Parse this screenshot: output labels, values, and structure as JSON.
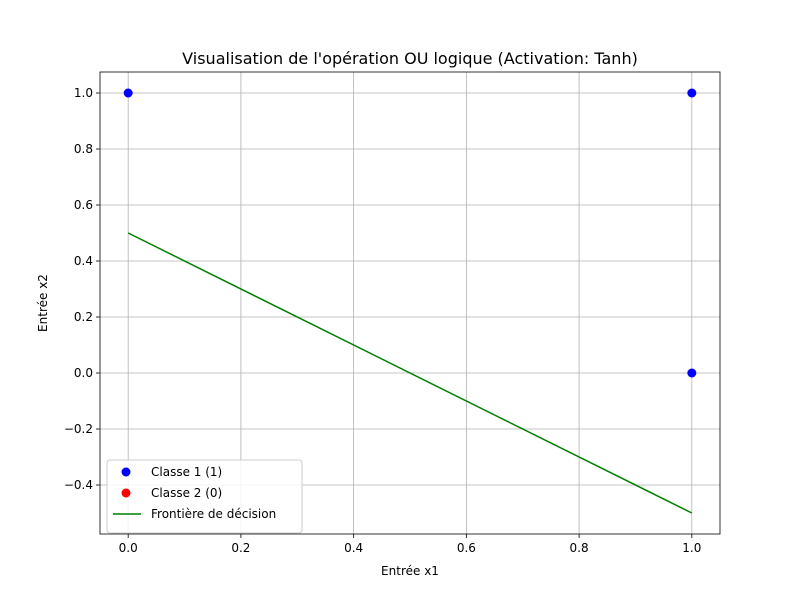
{
  "chart_data": {
    "type": "scatter",
    "title": "Visualisation de l'opération OU logique (Activation: Tanh)",
    "xlabel": "Entrée x1",
    "ylabel": "Entrée x2",
    "xlim": [
      -0.05,
      1.05
    ],
    "ylim": [
      -0.575,
      1.075
    ],
    "xticks": [
      0.0,
      0.2,
      0.4,
      0.6,
      0.8,
      1.0
    ],
    "xtick_labels": [
      "0.0",
      "0.2",
      "0.4",
      "0.6",
      "0.8",
      "1.0"
    ],
    "yticks": [
      -0.4,
      -0.2,
      0.0,
      0.2,
      0.4,
      0.6,
      0.8,
      1.0
    ],
    "ytick_labels": [
      "−0.4",
      "−0.2",
      "0.0",
      "0.2",
      "0.4",
      "0.6",
      "0.8",
      "1.0"
    ],
    "grid": true,
    "legend_position": "lower-left",
    "series": [
      {
        "name": "Classe 1 (1)",
        "kind": "scatter",
        "color": "#0000ff",
        "points": [
          {
            "x": 0,
            "y": 1
          },
          {
            "x": 1,
            "y": 1
          },
          {
            "x": 1,
            "y": 0
          }
        ]
      },
      {
        "name": "Classe 2 (0)",
        "kind": "scatter",
        "color": "#ff0000",
        "points": []
      },
      {
        "name": "Frontière de décision",
        "kind": "line",
        "color": "#008000",
        "points": [
          {
            "x": 0,
            "y": 0.5
          },
          {
            "x": 1,
            "y": -0.5
          }
        ]
      }
    ]
  }
}
